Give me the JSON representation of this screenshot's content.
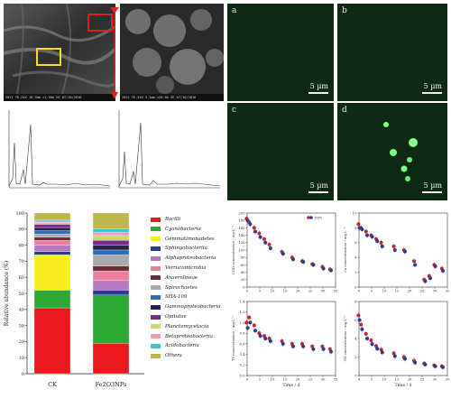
{
  "sem": {
    "left_footer": "2021 TE.2kV 10.7mm ×1.50k SE 07/10/2016",
    "left_scale": "10.0µm",
    "right_footer": "2021 TE.2kV 5.1mm ×20.0k SE 07/10/2016",
    "right_scale": "2.00µm"
  },
  "fluorescence": {
    "panels": [
      {
        "label": "a",
        "scale": "5 µm"
      },
      {
        "label": "b",
        "scale": "5 µm"
      },
      {
        "label": "c",
        "scale": "5 µm"
      },
      {
        "label": "d",
        "scale": "5 µm"
      }
    ]
  },
  "microbial": {
    "ylabel": "Relative abundance (%)",
    "yticks": [
      "0",
      "10",
      "20",
      "30",
      "40",
      "50",
      "60",
      "70",
      "80",
      "90",
      "100"
    ],
    "categories": [
      "CK",
      "Fe2O3NPs"
    ],
    "legend": [
      {
        "name": "Bacilli",
        "color": "#e8191f"
      },
      {
        "name": "Cyanobacteria",
        "color": "#2fa836"
      },
      {
        "name": "Gemmatimonadetes",
        "color": "#f7ee22"
      },
      {
        "name": "Sphingobacteriia",
        "color": "#2b3a93"
      },
      {
        "name": "Alphaproteobacteria",
        "color": "#b57bc0"
      },
      {
        "name": "Verrucomicrobia",
        "color": "#ec7fa0"
      },
      {
        "name": "Anaerolineae",
        "color": "#6b2d33"
      },
      {
        "name": "Spirochaetes",
        "color": "#a7a9ac"
      },
      {
        "name": "SHA-109",
        "color": "#2d6db4"
      },
      {
        "name": "Gammaproteobacteria",
        "color": "#26244e"
      },
      {
        "name": "Opitutae",
        "color": "#7a2a8e"
      },
      {
        "name": "Planctomycetacia",
        "color": "#cdd96e"
      },
      {
        "name": "Betaproteobacteria",
        "color": "#f49ab5"
      },
      {
        "name": "Acidobacteria",
        "color": "#3fc2d6"
      },
      {
        "name": "Others",
        "color": "#bdb84c"
      }
    ]
  },
  "chart_data": [
    {
      "type": "bar",
      "title": "",
      "xlabel": "",
      "ylabel": "Relative abundance (%)",
      "ylim": [
        0,
        100
      ],
      "categories": [
        "CK",
        "Fe2O3NPs"
      ],
      "series": [
        {
          "name": "Bacilli",
          "values": [
            41,
            19
          ]
        },
        {
          "name": "Cyanobacteria",
          "values": [
            11,
            30
          ]
        },
        {
          "name": "Gemmatimonadetes",
          "values": [
            22,
            0
          ]
        },
        {
          "name": "Sphingobacteriia",
          "values": [
            2,
            3
          ]
        },
        {
          "name": "Alphaproteobacteria",
          "values": [
            4,
            6
          ]
        },
        {
          "name": "Verrucomicrobia",
          "values": [
            3,
            6
          ]
        },
        {
          "name": "Anaerolineae",
          "values": [
            2,
            3
          ]
        },
        {
          "name": "Spirochaetes",
          "values": [
            2,
            7
          ]
        },
        {
          "name": "SHA-109",
          "values": [
            2,
            3
          ]
        },
        {
          "name": "Gammaproteobacteria",
          "values": [
            2,
            3
          ]
        },
        {
          "name": "Opitutae",
          "values": [
            2,
            3
          ]
        },
        {
          "name": "Planctomycetacia",
          "values": [
            1,
            3
          ]
        },
        {
          "name": "Betaproteobacteria",
          "values": [
            1,
            2
          ]
        },
        {
          "name": "Acidobacteria",
          "values": [
            1,
            2
          ]
        },
        {
          "name": "Others",
          "values": [
            4,
            10
          ]
        }
      ]
    },
    {
      "type": "scatter",
      "title": "",
      "ylabel": "COD concentration / mg·L⁻¹",
      "xlim": [
        0,
        35
      ],
      "ylim": [
        0,
        200
      ],
      "legend": [
        "CK",
        "NPs"
      ],
      "series": [
        {
          "name": "CK",
          "x": [
            0,
            1,
            3,
            5,
            7,
            9,
            14,
            18,
            22,
            26,
            30,
            33
          ],
          "y": [
            185,
            175,
            160,
            145,
            130,
            115,
            95,
            80,
            70,
            62,
            55,
            48
          ]
        },
        {
          "name": "NPs",
          "x": [
            0,
            1,
            3,
            5,
            7,
            9,
            14,
            18,
            22,
            26,
            30,
            33
          ],
          "y": [
            180,
            170,
            150,
            135,
            120,
            105,
            90,
            75,
            68,
            60,
            50,
            45
          ]
        }
      ]
    },
    {
      "type": "scatter",
      "title": "",
      "ylabel": "Cu concentration / mg·L⁻¹",
      "xlim": [
        0,
        35
      ],
      "ylim": [
        0,
        10
      ],
      "series": [
        {
          "name": "CK",
          "x": [
            0,
            1,
            3,
            5,
            7,
            9,
            14,
            18,
            22,
            26,
            28,
            30,
            33
          ],
          "y": [
            8.5,
            8.0,
            7.5,
            7.0,
            6.5,
            6.0,
            5.5,
            5.0,
            3.5,
            1.0,
            1.5,
            3.0,
            2.5
          ]
        },
        {
          "name": "NPs",
          "x": [
            0,
            1,
            3,
            5,
            7,
            9,
            14,
            18,
            22,
            26,
            28,
            30,
            33
          ],
          "y": [
            8.0,
            7.8,
            7.0,
            6.8,
            6.2,
            5.5,
            5.0,
            4.8,
            3.0,
            0.8,
            1.2,
            2.8,
            2.2
          ]
        }
      ]
    },
    {
      "type": "scatter",
      "title": "",
      "xlabel": "Time / d",
      "ylabel": "TP concentration / mg·L⁻¹",
      "xlim": [
        0,
        35
      ],
      "ylim": [
        0,
        1.4
      ],
      "series": [
        {
          "name": "CK",
          "x": [
            0,
            1,
            3,
            5,
            7,
            9,
            14,
            18,
            22,
            26,
            30,
            33
          ],
          "y": [
            1.0,
            1.1,
            0.95,
            0.8,
            0.75,
            0.7,
            0.65,
            0.6,
            0.6,
            0.55,
            0.55,
            0.5
          ]
        },
        {
          "name": "NPs",
          "x": [
            0,
            1,
            3,
            5,
            7,
            9,
            14,
            18,
            22,
            26,
            30,
            33
          ],
          "y": [
            0.9,
            1.0,
            0.85,
            0.75,
            0.7,
            0.65,
            0.6,
            0.55,
            0.55,
            0.5,
            0.5,
            0.45
          ]
        }
      ]
    },
    {
      "type": "scatter",
      "title": "",
      "xlabel": "Time / d",
      "ylabel": "TN concentration / mg·L⁻¹",
      "xlim": [
        0,
        35
      ],
      "ylim": [
        0,
        8
      ],
      "series": [
        {
          "name": "CK",
          "x": [
            0,
            1,
            3,
            5,
            7,
            9,
            14,
            18,
            22,
            26,
            30,
            33
          ],
          "y": [
            6.5,
            5.5,
            4.5,
            3.8,
            3.2,
            2.8,
            2.4,
            2.0,
            1.6,
            1.3,
            1.1,
            1.0
          ]
        },
        {
          "name": "NPs",
          "x": [
            0,
            1,
            3,
            5,
            7,
            9,
            14,
            18,
            22,
            26,
            30,
            33
          ],
          "y": [
            6.0,
            5.0,
            4.0,
            3.4,
            2.9,
            2.5,
            2.1,
            1.8,
            1.4,
            1.2,
            1.0,
            0.9
          ]
        }
      ]
    }
  ],
  "timecourse": {
    "xlabel": "Time / d",
    "xticks": [
      "0",
      "5",
      "10",
      "15",
      "20",
      "25",
      "30",
      "35"
    ],
    "legend_label": "NPs",
    "panels": [
      {
        "ylabel": "COD concentration / mg·L⁻¹",
        "yticks": [
          "0",
          "20",
          "40",
          "60",
          "80",
          "100",
          "120",
          "140",
          "160",
          "180",
          "200"
        ]
      },
      {
        "ylabel": "Cu concentration / mg·L⁻¹",
        "yticks": [
          "0",
          "2",
          "4",
          "6",
          "8",
          "10"
        ]
      },
      {
        "ylabel": "TP concentration / mg·L⁻¹",
        "yticks": [
          "0.0",
          "0.2",
          "0.4",
          "0.6",
          "0.8",
          "1.0",
          "1.2",
          "1.4"
        ]
      },
      {
        "ylabel": "TN concentration / mg·L⁻¹",
        "yticks": [
          "0",
          "2",
          "4",
          "6",
          "8"
        ]
      }
    ]
  },
  "colors": {
    "ck": "#c0282d",
    "nps": "#2b3a93"
  }
}
